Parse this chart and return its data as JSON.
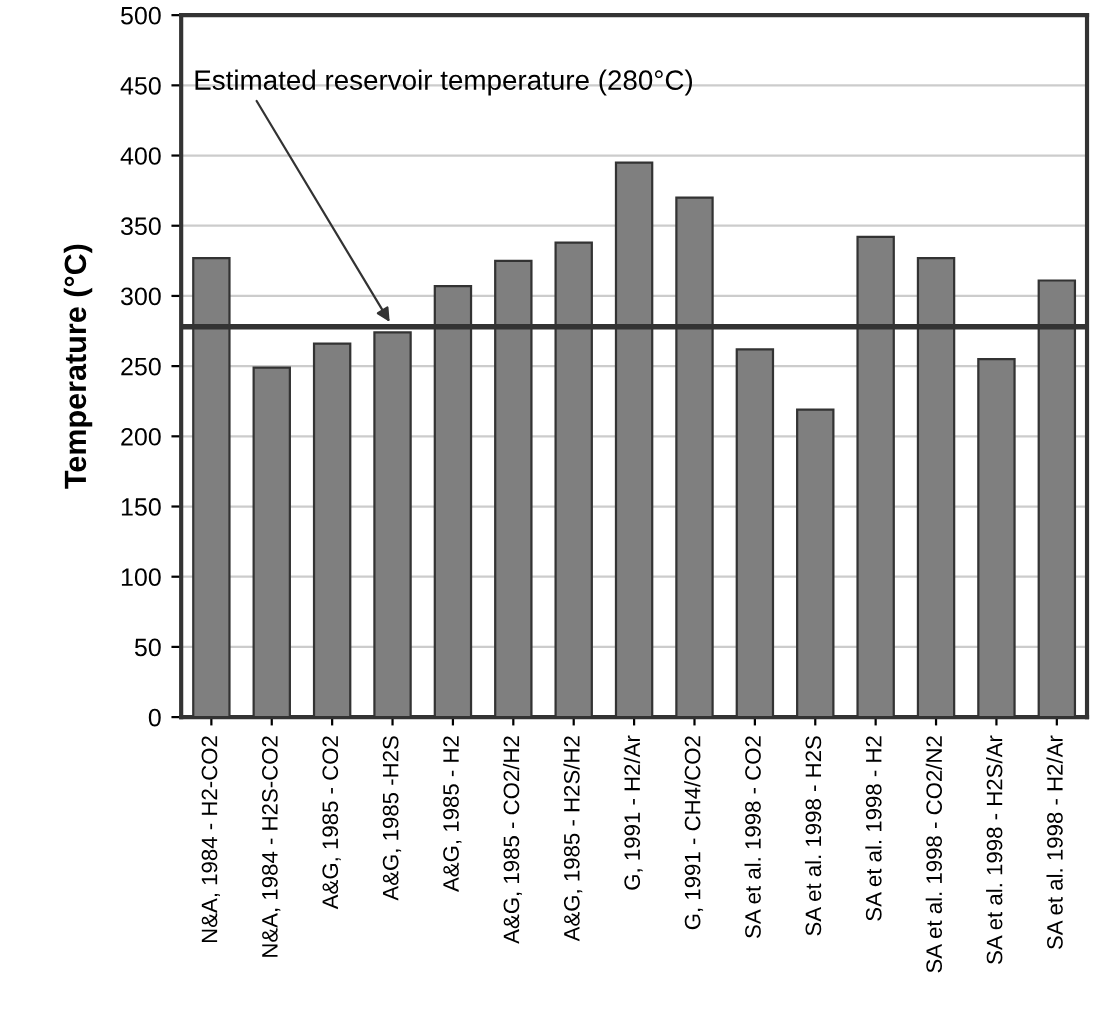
{
  "chart_data": {
    "type": "bar",
    "ylabel": "Temperature (°C)",
    "categories": [
      "N&A, 1984 - H2-CO2",
      "N&A, 1984 - H2S-CO2",
      "A&G, 1985 - CO2",
      "A&G, 1985 -H2S",
      "A&G, 1985 - H2",
      "A&G, 1985 - CO2/H2",
      "A&G, 1985 - H2S/H2",
      "G, 1991 - H2/Ar",
      "G, 1991 - CH4/CO2",
      "SA et al. 1998 - CO2",
      "SA et al. 1998 - H2S",
      "SA et al. 1998 - H2",
      "SA et al. 1998 - CO2/N2",
      "SA et al. 1998 - H2S/Ar",
      "SA et al. 1998 - H2/Ar"
    ],
    "values": [
      327,
      249,
      266,
      274,
      307,
      325,
      338,
      395,
      370,
      262,
      219,
      342,
      327,
      255,
      311
    ],
    "color": "#7f7f7f",
    "ylim": [
      0,
      500
    ],
    "yticks": [
      0,
      50,
      100,
      150,
      200,
      250,
      300,
      350,
      400,
      450,
      500
    ],
    "grid": "y",
    "ref_lines": [
      {
        "axis": "y",
        "value": 278,
        "color": "#333333"
      }
    ],
    "annotations": [
      {
        "text": "Estimated reservoir temperature (280°C)",
        "x": "A&G, 1985 -H2S",
        "y": 278
      }
    ]
  }
}
